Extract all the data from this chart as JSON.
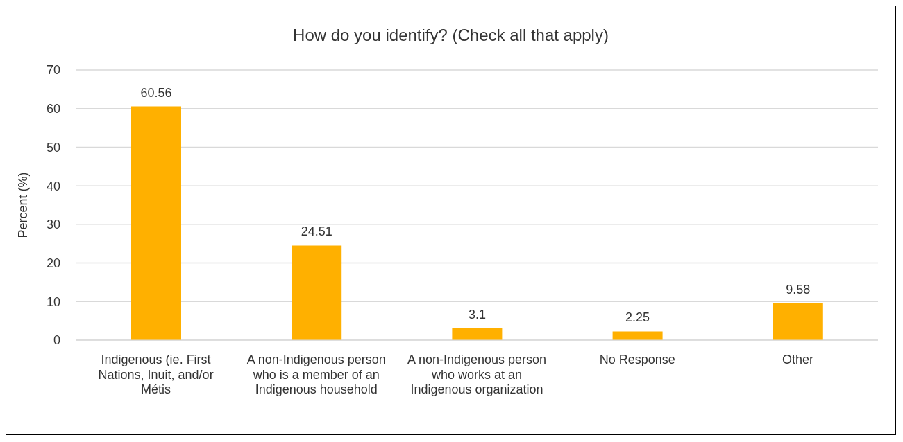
{
  "chart_data": {
    "type": "bar",
    "title": "How do you identify? (Check all that apply)",
    "ylabel": "Percent (%)",
    "categories": [
      "Indigenous (ie. First Nations, Inuit, and/or Métis",
      "A non-Indigenous person who is a member of an Indigenous household",
      "A non-Indigenous person who works at an Indigenous organization",
      "No Response",
      "Other"
    ],
    "values": [
      60.56,
      24.51,
      3.1,
      2.25,
      9.58
    ],
    "color": "#ffb000",
    "ylim": [
      0,
      70
    ],
    "yticks": [
      0,
      10,
      20,
      30,
      40,
      50,
      60,
      70
    ],
    "grid": "y",
    "data_labels": true
  }
}
